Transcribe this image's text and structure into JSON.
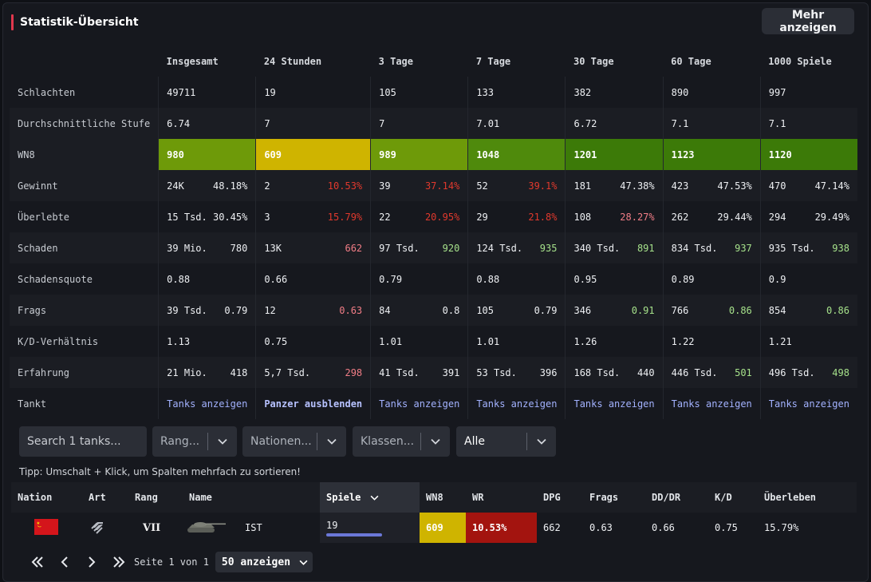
{
  "header": {
    "title": "Statistik-Übersicht",
    "more_button": "Mehr anzeigen"
  },
  "stats": {
    "columns": [
      "Insgesamt",
      "24 Stunden",
      "3 Tage",
      "7 Tage",
      "30 Tage",
      "60 Tage",
      "1000 Spiele"
    ],
    "rows": {
      "schlachten": {
        "label": "Schlachten",
        "values": [
          "49711",
          "19",
          "105",
          "133",
          "382",
          "890",
          "997"
        ]
      },
      "stufe": {
        "label": "Durchschnittliche Stufe",
        "values": [
          "6.74",
          "7",
          "7",
          "7.01",
          "6.72",
          "7.1",
          "7.1"
        ]
      },
      "wn8": {
        "label": "WN8",
        "values": [
          "980",
          "609",
          "989",
          "1048",
          "1201",
          "1123",
          "1120"
        ]
      },
      "gewinnt": {
        "label": "Gewinnt",
        "a": [
          "24K",
          "2",
          "39",
          "52",
          "181",
          "423",
          "470"
        ],
        "b": [
          "48.18%",
          "10.53%",
          "37.14%",
          "39.1%",
          "47.38%",
          "47.53%",
          "47.14%"
        ]
      },
      "ueberlebte": {
        "label": "Überlebte",
        "a": [
          "15 Tsd.",
          "3",
          "22",
          "29",
          "108",
          "262",
          "294"
        ],
        "b": [
          "30.45%",
          "15.79%",
          "20.95%",
          "21.8%",
          "28.27%",
          "29.44%",
          "29.49%"
        ]
      },
      "schaden": {
        "label": "Schaden",
        "a": [
          "39 Mio.",
          "13K",
          "97 Tsd.",
          "124 Tsd.",
          "340 Tsd.",
          "834 Tsd.",
          "935 Tsd."
        ],
        "b": [
          "780",
          "662",
          "920",
          "935",
          "891",
          "937",
          "938"
        ]
      },
      "schadensquote": {
        "label": "Schadensquote",
        "values": [
          "0.88",
          "0.66",
          "0.79",
          "0.88",
          "0.95",
          "0.89",
          "0.9"
        ]
      },
      "frags": {
        "label": "Frags",
        "a": [
          "39 Tsd.",
          "12",
          "84",
          "105",
          "346",
          "766",
          "854"
        ],
        "b": [
          "0.79",
          "0.63",
          "0.8",
          "0.79",
          "0.91",
          "0.86",
          "0.86"
        ]
      },
      "kd": {
        "label": "K/D-Verhältnis",
        "values": [
          "1.13",
          "0.75",
          "1.01",
          "1.01",
          "1.26",
          "1.22",
          "1.21"
        ]
      },
      "erfahrung": {
        "label": "Erfahrung",
        "a": [
          "21 Mio.",
          "5,7 Tsd.",
          "41 Tsd.",
          "53 Tsd.",
          "168 Tsd.",
          "446 Tsd.",
          "496 Tsd."
        ],
        "b": [
          "418",
          "298",
          "391",
          "396",
          "440",
          "501",
          "498"
        ]
      },
      "tankt": {
        "label": "Tankt",
        "values": [
          "Tanks anzeigen",
          "Panzer ausblenden",
          "Tanks anzeigen",
          "Tanks anzeigen",
          "Tanks anzeigen",
          "Tanks anzeigen",
          "Tanks anzeigen"
        ]
      }
    },
    "colors": {
      "wn8": [
        "#6e9a09",
        "#cfb400",
        "#6e9a09",
        "#4f8a0c",
        "#3c7a08",
        "#3c7a08",
        "#3c7a08"
      ],
      "negative_red": "#e1392d",
      "negative_light": "#f17d86",
      "positive_green": "#a5e08a",
      "link": "#a3b2ff"
    }
  },
  "filters": {
    "search_placeholder": "Search 1 tanks...",
    "rang": "Rang...",
    "nationen": "Nationen...",
    "klassen": "Klassen...",
    "status": "Alle"
  },
  "tip": "Tipp: Umschalt + Klick, um Spalten mehrfach zu sortieren!",
  "tank_table": {
    "headers": [
      "Nation",
      "Art",
      "Rang",
      "Name",
      "Spiele",
      "WN8",
      "WR",
      "DPG",
      "Frags",
      "DD/DR",
      "K/D",
      "Überleben"
    ],
    "row": {
      "nation_icon": "ussr-flag-icon",
      "class_icon": "heavy-tank-icon",
      "rang": "VII",
      "name": "IST",
      "spiele": "19",
      "wn8": "609",
      "wr": "10.53%",
      "dpg": "662",
      "frags": "0.63",
      "dddr": "0.66",
      "kd": "0.75",
      "ueberleben": "15.79%"
    }
  },
  "pagination": {
    "info": "Seite 1 von 1",
    "per_page": "50 anzeigen"
  }
}
